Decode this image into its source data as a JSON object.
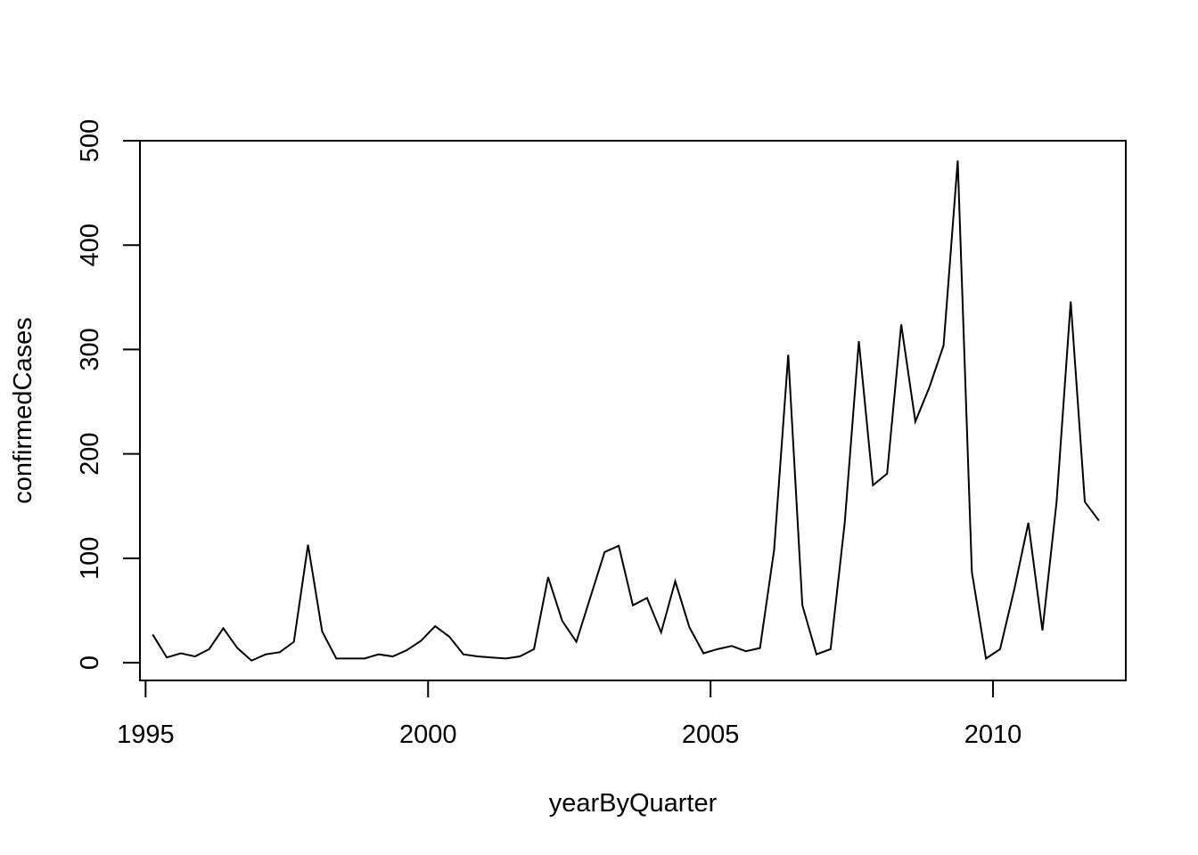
{
  "chart_data": {
    "type": "line",
    "xlabel": "yearByQuarter",
    "ylabel": "confirmedCases",
    "xlim": [
      1994.9,
      2012.35
    ],
    "ylim": [
      -17,
      500
    ],
    "x_ticks": [
      1995,
      2000,
      2005,
      2010
    ],
    "x_tick_labels": [
      "1995",
      "2000",
      "2005",
      "2010"
    ],
    "y_ticks": [
      0,
      100,
      200,
      300,
      400,
      500
    ],
    "y_tick_labels": [
      "0",
      "100",
      "200",
      "300",
      "400",
      "500"
    ],
    "grid": false,
    "legend": false,
    "line_color": "#000000",
    "x": [
      1995.125,
      1995.375,
      1995.625,
      1995.875,
      1996.125,
      1996.375,
      1996.625,
      1996.875,
      1997.125,
      1997.375,
      1997.625,
      1997.875,
      1998.125,
      1998.375,
      1998.625,
      1998.875,
      1999.125,
      1999.375,
      1999.625,
      1999.875,
      2000.125,
      2000.375,
      2000.625,
      2000.875,
      2001.125,
      2001.375,
      2001.625,
      2001.875,
      2002.125,
      2002.375,
      2002.625,
      2002.875,
      2003.125,
      2003.375,
      2003.625,
      2003.875,
      2004.125,
      2004.375,
      2004.625,
      2004.875,
      2005.125,
      2005.375,
      2005.625,
      2005.875,
      2006.125,
      2006.375,
      2006.625,
      2006.875,
      2007.125,
      2007.375,
      2007.625,
      2007.875,
      2008.125,
      2008.375,
      2008.625,
      2008.875,
      2009.125,
      2009.375,
      2009.625,
      2009.875,
      2010.125,
      2010.375,
      2010.625,
      2010.875,
      2011.125,
      2011.375,
      2011.625,
      2011.875
    ],
    "values": [
      27,
      5,
      9,
      6,
      13,
      33,
      14,
      2,
      8,
      10,
      20,
      113,
      30,
      4,
      4,
      4,
      8,
      6,
      12,
      21,
      35,
      25,
      8,
      6,
      5,
      4,
      6,
      13,
      82,
      40,
      20,
      63,
      106,
      112,
      55,
      62,
      29,
      78,
      34,
      9,
      13,
      16,
      11,
      14,
      108,
      295,
      55,
      8,
      13,
      134,
      308,
      170,
      181,
      324,
      231,
      264,
      304,
      481,
      87,
      4,
      13,
      70,
      134,
      31,
      154,
      346,
      154,
      136
    ]
  }
}
